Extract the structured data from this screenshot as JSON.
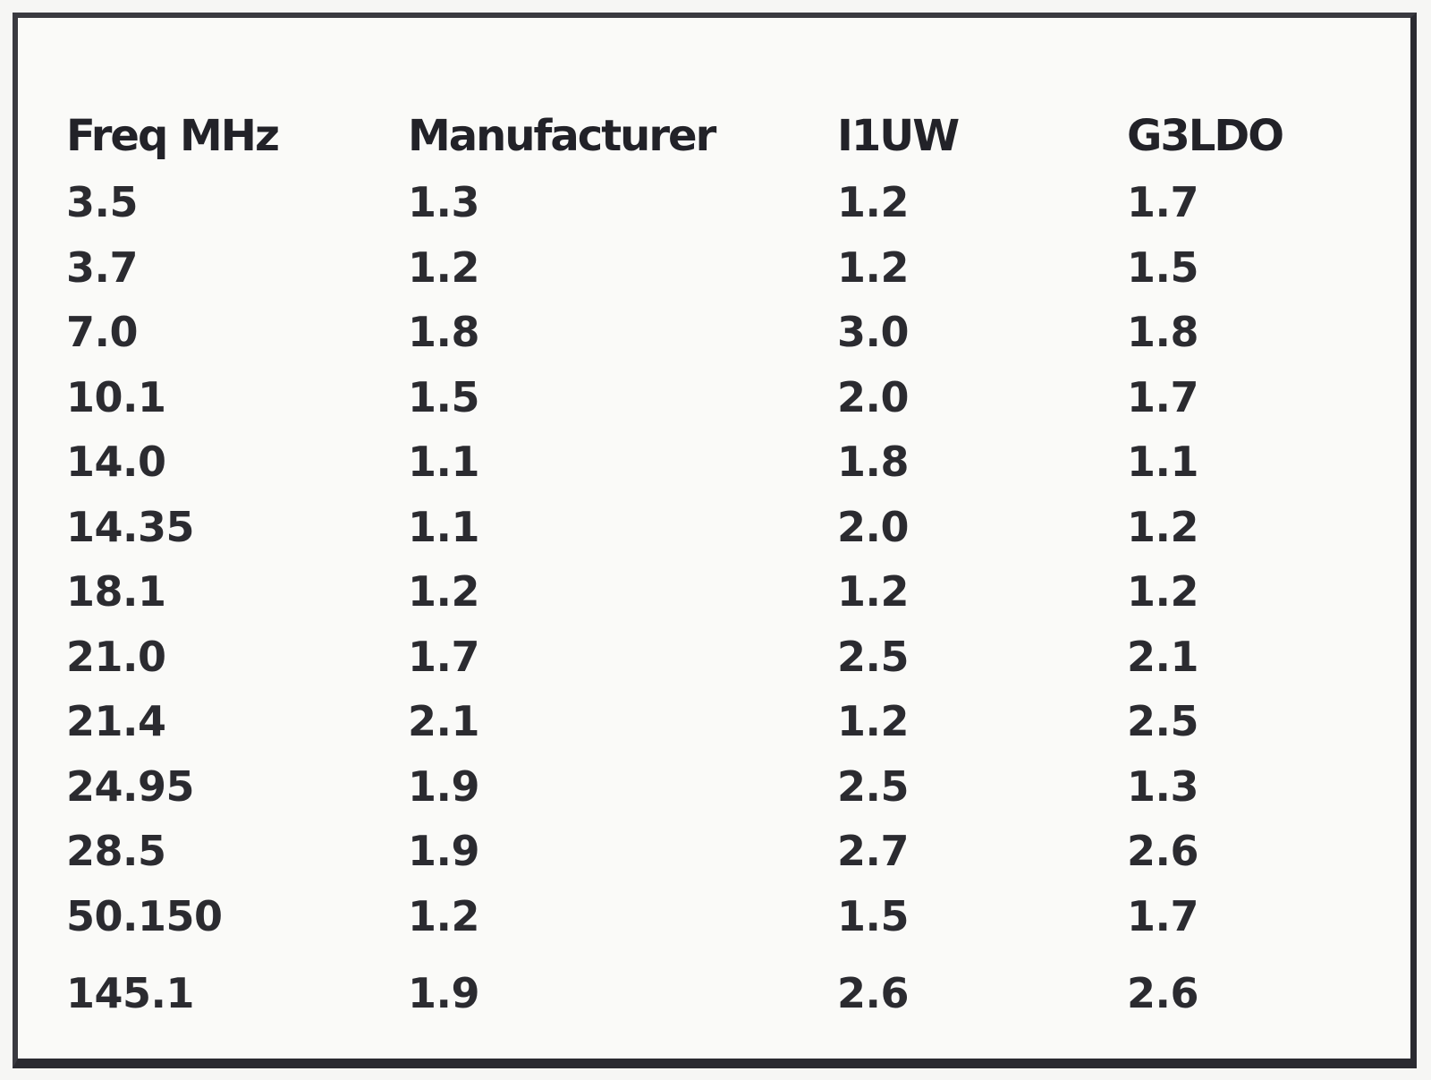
{
  "table": {
    "headers": [
      "Freq MHz",
      "Manufacturer",
      "I1UW",
      "G3LDO"
    ],
    "rows": [
      [
        "3.5",
        "1.3",
        "1.2",
        "1.7"
      ],
      [
        "3.7",
        "1.2",
        "1.2",
        "1.5"
      ],
      [
        "7.0",
        "1.8",
        "3.0",
        "1.8"
      ],
      [
        "10.1",
        "1.5",
        "2.0",
        "1.7"
      ],
      [
        "14.0",
        "1.1",
        "1.8",
        "1.1"
      ],
      [
        "14.35",
        "1.1",
        "2.0",
        "1.2"
      ],
      [
        "18.1",
        "1.2",
        "1.2",
        "1.2"
      ],
      [
        "21.0",
        "1.7",
        "2.5",
        "2.1"
      ],
      [
        "21.4",
        "2.1",
        "1.2",
        "2.5"
      ],
      [
        "24.95",
        "1.9",
        "2.5",
        "1.3"
      ],
      [
        "28.5",
        "1.9",
        "2.7",
        "2.6"
      ],
      [
        "50.150",
        "1.2",
        "1.5",
        "1.7"
      ],
      [
        "145.1",
        "1.9",
        "2.6",
        "2.6"
      ]
    ]
  }
}
